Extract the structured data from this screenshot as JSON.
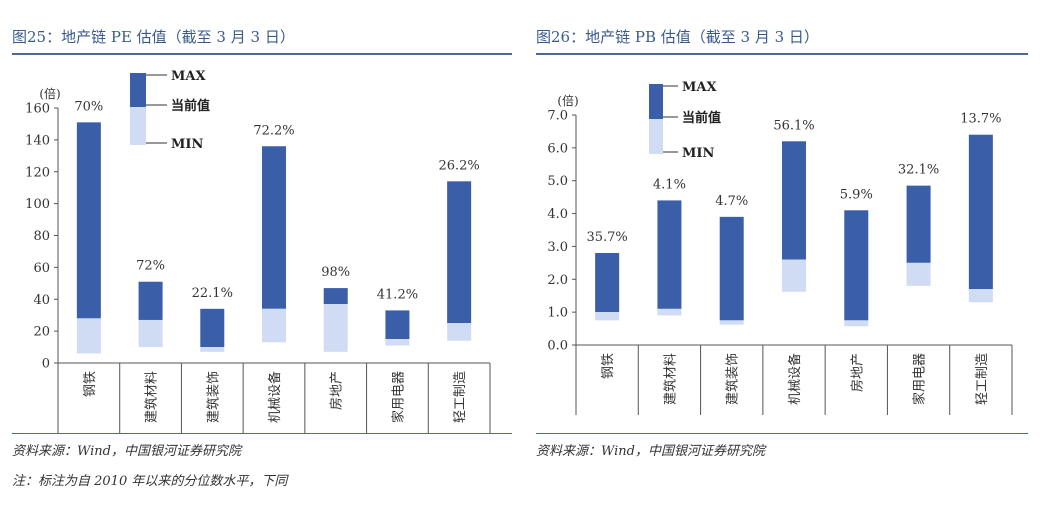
{
  "colors": {
    "range_upper": "#3a5ea8",
    "range_lower": "#cfdcf3",
    "title": "#3a5a8c",
    "rule": "#4a6b9a"
  },
  "note": "注：标注为自 2010 年以来的分位数水平，下同",
  "chart_data": [
    {
      "type": "bar",
      "title": "图25：地产链 PE 估值（截至 3 月 3 日）",
      "source": "资料来源：Wind，中国银河证券研究院",
      "ylabel": "(倍)",
      "ylim": [
        0,
        160
      ],
      "yticks": [
        "0",
        "20",
        "40",
        "60",
        "80",
        "100",
        "120",
        "140",
        "160"
      ],
      "legend": {
        "max": "MAX",
        "current": "当前值",
        "min": "MIN"
      },
      "categories": [
        "钢铁",
        "建筑材料",
        "建筑装饰",
        "机械设备",
        "房地产",
        "家用电器",
        "轻工制造"
      ],
      "max": [
        151,
        51,
        34,
        136,
        47,
        33,
        114
      ],
      "current": [
        28,
        27,
        10,
        34,
        37,
        15,
        25
      ],
      "min": [
        6,
        10,
        7,
        13,
        7,
        11,
        14
      ],
      "percentile_labels": [
        "70%",
        "72%",
        "22.1%",
        "72.2%",
        "98%",
        "41.2%",
        "26.2%"
      ]
    },
    {
      "type": "bar",
      "title": "图26：地产链 PB 估值（截至 3 月 3 日）",
      "source": "资料来源：Wind，中国银河证券研究院",
      "ylabel": "(倍)",
      "ylim": [
        0,
        7
      ],
      "yticks": [
        "0.0",
        "1.0",
        "2.0",
        "3.0",
        "4.0",
        "5.0",
        "6.0",
        "7.0"
      ],
      "legend": {
        "max": "MAX",
        "current": "当前值",
        "min": "MIN"
      },
      "categories": [
        "钢铁",
        "建筑材料",
        "建筑装饰",
        "机械设备",
        "房地产",
        "家用电器",
        "轻工制造"
      ],
      "max": [
        2.8,
        4.4,
        3.9,
        6.2,
        4.1,
        4.85,
        6.4
      ],
      "current": [
        1.0,
        1.1,
        0.75,
        2.6,
        0.75,
        2.5,
        1.7
      ],
      "min": [
        0.75,
        0.9,
        0.62,
        1.62,
        0.57,
        1.8,
        1.3
      ],
      "percentile_labels": [
        "35.7%",
        "4.1%",
        "4.7%",
        "56.1%",
        "5.9%",
        "32.1%",
        "13.7%"
      ]
    }
  ]
}
